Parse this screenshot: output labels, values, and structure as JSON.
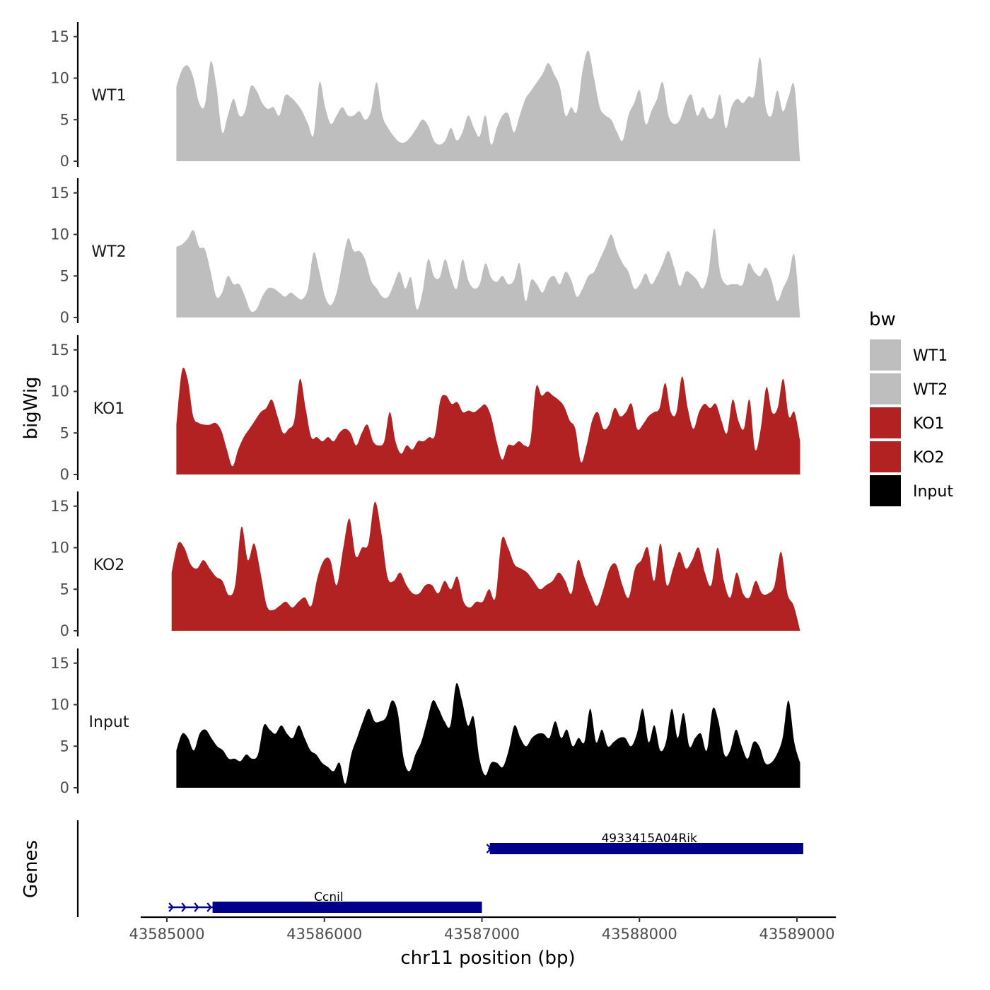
{
  "chart_data": {
    "type": "area",
    "chromosome": "chr11",
    "xlabel": "chr11 position (bp)",
    "ylabel": "bigWig",
    "gene_track_label": "Genes",
    "x_range": [
      43584850,
      43589220
    ],
    "x_ticks": [
      43585000,
      43586000,
      43587000,
      43588000,
      43589000
    ],
    "x_tick_labels": [
      "43585000",
      "43586000",
      "43587000",
      "43588000",
      "43589000"
    ],
    "ylim": [
      0,
      16
    ],
    "y_ticks": [
      0,
      5,
      10,
      15
    ],
    "y_tick_labels": [
      "0",
      "5",
      "10",
      "15"
    ],
    "bin_step_bp": 40,
    "legend": {
      "title": "bw",
      "position": "right",
      "entries": [
        {
          "label": "WT1",
          "color": "#bebebe"
        },
        {
          "label": "WT2",
          "color": "#bebebe"
        },
        {
          "label": "KO1",
          "color": "#b22222"
        },
        {
          "label": "KO2",
          "color": "#b22222"
        },
        {
          "label": "Input",
          "color": "#000000"
        }
      ]
    },
    "series": [
      {
        "name": "WT1",
        "color": "#bebebe",
        "x_start": 43585060,
        "x_end": 43589020,
        "values": [
          9,
          11,
          11.5,
          10,
          7,
          6.8,
          12,
          9,
          3.5,
          5.5,
          7.5,
          5.5,
          6,
          9,
          8.5,
          7,
          6.3,
          6.5,
          5.5,
          7.9,
          7.7,
          7,
          6,
          4.5,
          3.2,
          9.5,
          6.5,
          4.5,
          5.5,
          6.5,
          5.5,
          5.5,
          6,
          5,
          6,
          9.5,
          5.5,
          4,
          3,
          2.3,
          2.3,
          3,
          4,
          5,
          4.3,
          2.5,
          2,
          2.5,
          4,
          2.5,
          3.5,
          5.5,
          4,
          3,
          5.5,
          2,
          4,
          5.5,
          5.7,
          3.5,
          5.5,
          7.5,
          8.5,
          9.5,
          10.5,
          11.8,
          10.5,
          9,
          5.5,
          6.5,
          6,
          11,
          13.3,
          10,
          6.5,
          5.5,
          5,
          3.5,
          2.5,
          5.5,
          7,
          8.5,
          4.5,
          6,
          7.5,
          9.5,
          5.5,
          4.5,
          5,
          7,
          8,
          5.5,
          6.5,
          5.2,
          5.5,
          8,
          4,
          6.5,
          7.5,
          7,
          7.8,
          8,
          12.5,
          6.5,
          5.5,
          8.5,
          6,
          7.8,
          9,
          0
        ]
      },
      {
        "name": "WT2",
        "color": "#bebebe",
        "x_start": 43585060,
        "x_end": 43589020,
        "values": [
          8.5,
          8.8,
          9.5,
          10.5,
          8.5,
          8.2,
          5.5,
          2.5,
          3,
          5,
          4,
          4,
          2.5,
          0.8,
          1,
          2.5,
          3.5,
          3.5,
          3,
          2.5,
          3,
          2.5,
          2.2,
          3.5,
          7.8,
          5.5,
          2.5,
          1.5,
          3,
          6.5,
          9.5,
          8,
          8,
          7,
          4.5,
          3.5,
          2.5,
          2.5,
          4,
          5.5,
          3.5,
          4.8,
          1,
          3,
          7,
          5,
          4.8,
          7,
          4.8,
          3.5,
          7,
          4.5,
          3.5,
          4,
          6.5,
          4.8,
          4.3,
          5,
          4,
          4.5,
          6.5,
          2,
          4.5,
          4,
          3,
          4.5,
          5,
          4,
          5.5,
          4.5,
          2.5,
          3.5,
          5,
          5.5,
          7,
          8.5,
          10,
          8,
          6.5,
          5.5,
          3.5,
          4,
          5.3,
          4,
          5,
          6.5,
          8,
          6,
          3.8,
          5.5,
          5.2,
          4.5,
          3.5,
          5.5,
          10.7,
          5.5,
          4,
          4,
          4,
          4,
          6.5,
          5.5,
          5,
          6,
          4.5,
          2,
          3.5,
          5,
          7.5,
          0
        ]
      },
      {
        "name": "KO1",
        "color": "#b22222",
        "x_start": 43585060,
        "x_end": 43589020,
        "values": [
          6,
          12.5,
          11.5,
          7,
          6.2,
          6,
          6,
          6.2,
          5.3,
          3,
          1,
          3,
          4.5,
          5.5,
          6.5,
          7.5,
          8,
          9,
          7,
          5,
          5.5,
          6.5,
          11.5,
          8,
          4.5,
          4.5,
          4,
          4.5,
          4,
          5,
          5.5,
          5,
          3.5,
          5,
          6,
          4,
          3.5,
          4,
          7.5,
          4,
          2.5,
          3.5,
          3,
          4,
          4,
          4.5,
          4.7,
          9,
          9.5,
          8.5,
          8.7,
          7.5,
          7.7,
          7.5,
          8,
          8.4,
          7,
          4,
          1.8,
          3.5,
          3.5,
          4,
          3.5,
          4,
          10.5,
          9.5,
          10,
          9.5,
          9,
          8.2,
          6.5,
          5.5,
          1.5,
          3.5,
          6.5,
          7.5,
          5.5,
          6,
          8,
          7,
          7.5,
          8.5,
          5.5,
          6,
          7,
          7.5,
          8,
          11,
          7.5,
          7.5,
          11.8,
          8,
          5.5,
          7.5,
          8.5,
          8,
          8.5,
          6.5,
          5,
          9,
          6.5,
          5.5,
          9,
          3,
          5.5,
          10.5,
          7.5,
          8,
          11.5,
          7,
          7.5,
          4
        ]
      },
      {
        "name": "KO2",
        "color": "#b22222",
        "x_start": 43585030,
        "x_end": 43589020,
        "values": [
          7,
          10.5,
          10,
          8,
          7.5,
          8.5,
          7.5,
          6.5,
          6,
          4.3,
          5.5,
          12.5,
          8.5,
          10.5,
          7,
          3,
          2.5,
          3,
          3.5,
          2.8,
          3.5,
          4,
          3,
          6.5,
          8.5,
          8.5,
          5.5,
          9.8,
          13.5,
          9,
          10,
          10.5,
          15.5,
          12,
          6.5,
          6,
          7,
          5.5,
          4.5,
          4.5,
          5.5,
          5.5,
          4.5,
          6,
          5,
          6.5,
          3.5,
          2.8,
          3.5,
          3.5,
          5,
          4,
          11,
          10,
          8,
          7.5,
          7,
          6,
          5,
          5.5,
          6,
          7,
          6,
          4.5,
          8.5,
          6.5,
          4.5,
          3,
          5,
          7.5,
          8,
          5.5,
          4,
          7.5,
          8.5,
          10,
          6,
          10.5,
          5.5,
          7.5,
          9.5,
          7.5,
          8.5,
          10,
          7,
          5.5,
          10,
          6,
          4,
          7,
          4.5,
          4,
          6,
          4.5,
          4.5,
          5.5,
          9.5,
          4.5,
          3,
          0
        ]
      },
      {
        "name": "Input",
        "color": "#000000",
        "x_start": 43585060,
        "x_end": 43589020,
        "values": [
          4.5,
          6.5,
          6,
          4.5,
          6.5,
          7,
          6,
          5,
          4.5,
          3.5,
          3.5,
          3.2,
          4,
          3.5,
          4,
          7.5,
          7,
          6.5,
          7.5,
          6.5,
          6,
          7.5,
          6,
          4.5,
          4,
          3,
          2.5,
          2,
          3,
          0.5,
          4,
          6,
          8,
          9.5,
          8,
          8,
          8.5,
          10.5,
          9,
          3.5,
          2,
          4,
          5.5,
          8,
          10.5,
          9.5,
          8,
          7.5,
          12.5,
          10.5,
          7.5,
          8.5,
          3.5,
          1.5,
          3,
          3,
          2.5,
          4.5,
          7.5,
          6,
          5,
          6,
          6.5,
          6.5,
          6,
          8,
          6,
          7,
          5,
          6,
          5.5,
          9.5,
          5.5,
          7,
          5,
          5.5,
          6,
          6,
          5,
          6.5,
          9.5,
          5.5,
          7.5,
          4.5,
          5.5,
          9.5,
          6,
          9,
          5,
          6,
          6.5,
          4.5,
          9.5,
          8,
          4,
          4.5,
          7,
          5,
          3.5,
          5.5,
          5,
          3,
          3,
          4,
          6,
          10.5,
          5.5,
          3
        ]
      }
    ],
    "genes": [
      {
        "name": "4933415A04Rik",
        "start": 43587040,
        "end": 43589040,
        "strand": "+",
        "thick_start": 43587050,
        "thick_end": 43589040,
        "row": 1,
        "color": "#00008b"
      },
      {
        "name": "Ccnil",
        "start": 43585010,
        "end": 43587000,
        "strand": "+",
        "thick_start": 43585290,
        "thick_end": 43587000,
        "row": 2,
        "color": "#00008b"
      }
    ]
  }
}
